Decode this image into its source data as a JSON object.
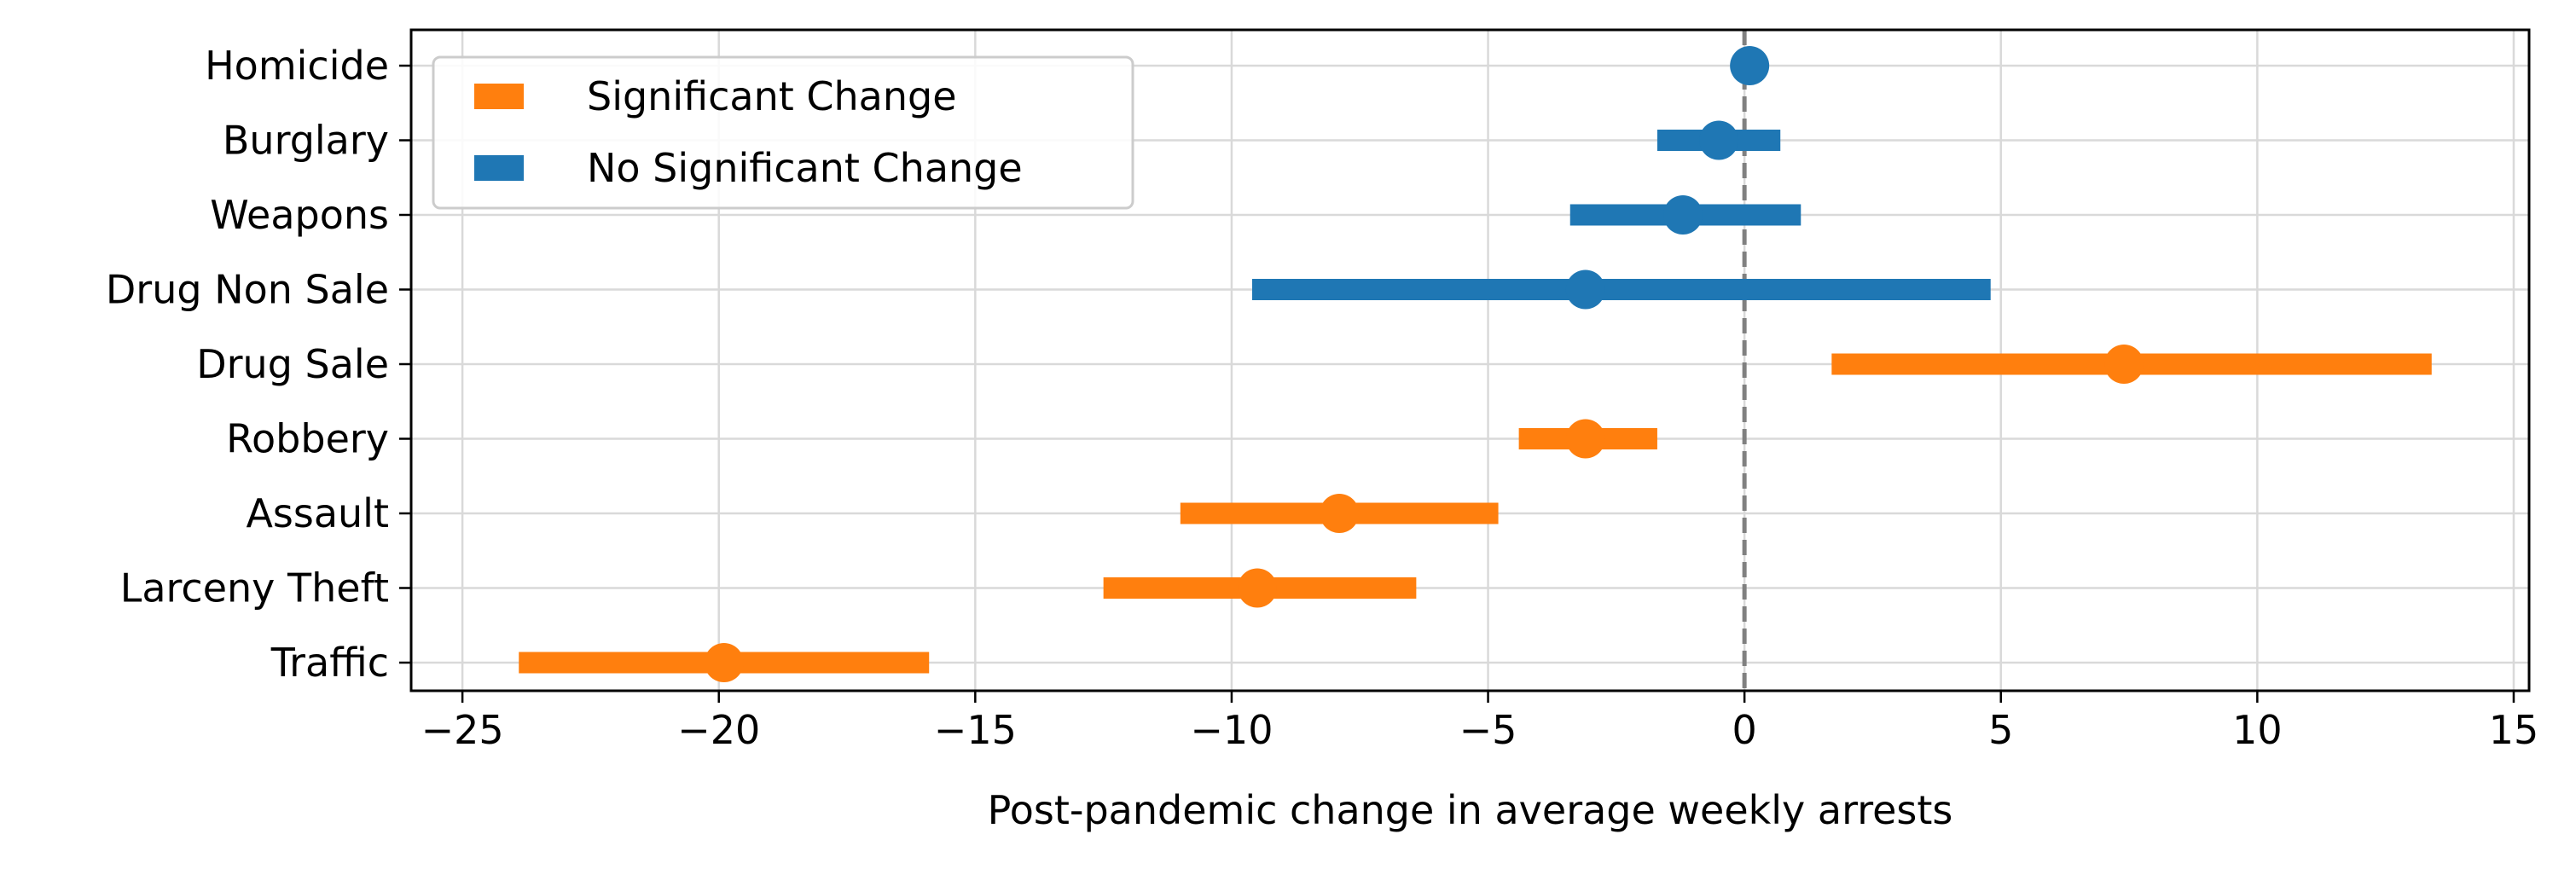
{
  "chart_data": {
    "type": "scatter",
    "title": "",
    "xlabel": "Post-pandemic change in average weekly arrests",
    "ylabel": "",
    "xlim": [
      -26,
      15.3
    ],
    "x_ticks": [
      {
        "value": -25,
        "label": "−25"
      },
      {
        "value": -20,
        "label": "−20"
      },
      {
        "value": -15,
        "label": "−15"
      },
      {
        "value": -10,
        "label": "−10"
      },
      {
        "value": -5,
        "label": "−5"
      },
      {
        "value": 0,
        "label": "0"
      },
      {
        "value": 5,
        "label": "5"
      },
      {
        "value": 10,
        "label": "10"
      },
      {
        "value": 15,
        "label": "15"
      }
    ],
    "categories": [
      "Homicide",
      "Burglary",
      "Weapons",
      "Drug Non Sale",
      "Drug Sale",
      "Robbery",
      "Assault",
      "Larceny Theft",
      "Traffic"
    ],
    "points": [
      {
        "category": "Homicide",
        "estimate": 0.1,
        "ci_low": 0.1,
        "ci_high": 0.1,
        "significant": false
      },
      {
        "category": "Burglary",
        "estimate": -0.5,
        "ci_low": -1.7,
        "ci_high": 0.7,
        "significant": false
      },
      {
        "category": "Weapons",
        "estimate": -1.2,
        "ci_low": -3.4,
        "ci_high": 1.1,
        "significant": false
      },
      {
        "category": "Drug Non Sale",
        "estimate": -3.1,
        "ci_low": -9.6,
        "ci_high": 4.8,
        "significant": false
      },
      {
        "category": "Drug Sale",
        "estimate": 7.4,
        "ci_low": 1.7,
        "ci_high": 13.4,
        "significant": true
      },
      {
        "category": "Robbery",
        "estimate": -3.1,
        "ci_low": -4.4,
        "ci_high": -1.7,
        "significant": true
      },
      {
        "category": "Assault",
        "estimate": -7.9,
        "ci_low": -11.0,
        "ci_high": -4.8,
        "significant": true
      },
      {
        "category": "Larceny Theft",
        "estimate": -9.5,
        "ci_low": -12.5,
        "ci_high": -6.4,
        "significant": true
      },
      {
        "category": "Traffic",
        "estimate": -19.9,
        "ci_low": -23.9,
        "ci_high": -15.9,
        "significant": true
      }
    ],
    "reference_line": {
      "x": 0,
      "style": "dashed",
      "color": "#808080"
    },
    "legend": {
      "position": "top-left",
      "entries": [
        {
          "label": "Significant Change",
          "color": "#ff7f0e"
        },
        {
          "label": "No Significant Change",
          "color": "#1f77b4"
        }
      ]
    },
    "colors": {
      "significant": "#ff7f0e",
      "not_significant": "#1f77b4"
    },
    "grid": true
  }
}
